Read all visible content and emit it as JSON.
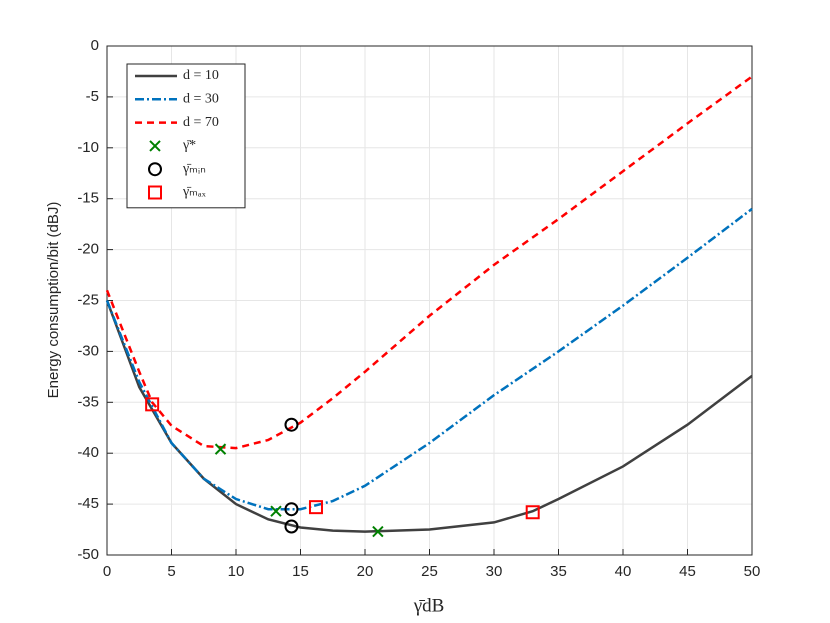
{
  "chart_data": {
    "type": "line",
    "xlabel": "γ̄dB",
    "ylabel": "Energy consumption/bit (dBJ)",
    "xlim": [
      0,
      50
    ],
    "ylim": [
      -50,
      0
    ],
    "xticks": [
      0,
      5,
      10,
      15,
      20,
      25,
      30,
      35,
      40,
      45,
      50
    ],
    "yticks": [
      0,
      -5,
      -10,
      -15,
      -20,
      -25,
      -30,
      -35,
      -40,
      -45,
      -50
    ],
    "grid": true,
    "legend": "upper left",
    "series": [
      {
        "name": "d = 10",
        "color": "#404040",
        "style": "solid",
        "x": [
          0,
          2.5,
          5,
          7.5,
          10,
          12.5,
          15,
          17.5,
          20,
          25,
          30,
          33,
          35,
          40,
          45,
          50
        ],
        "values": [
          -25,
          -33.5,
          -39,
          -42.5,
          -45,
          -46.5,
          -47.3,
          -47.6,
          -47.7,
          -47.5,
          -46.8,
          -45.7,
          -44.5,
          -41.3,
          -37.2,
          -32.4
        ]
      },
      {
        "name": "d = 30",
        "color": "#0072bd",
        "style": "dashdot",
        "x": [
          0,
          2.5,
          5,
          7.5,
          10,
          12.5,
          15,
          17.5,
          20,
          25,
          30,
          35,
          40,
          45,
          50
        ],
        "values": [
          -25,
          -33,
          -39,
          -42.5,
          -44.5,
          -45.5,
          -45.5,
          -44.7,
          -43.2,
          -39,
          -34.3,
          -30,
          -25.5,
          -20.8,
          -16
        ]
      },
      {
        "name": "d = 70",
        "color": "#ff0000",
        "style": "dashed",
        "x": [
          0,
          2.5,
          3.5,
          5,
          7.5,
          10,
          12.5,
          15,
          17.5,
          20,
          25,
          30,
          35,
          40,
          45,
          50
        ],
        "values": [
          -24,
          -32,
          -35,
          -37.3,
          -39.3,
          -39.5,
          -38.7,
          -37,
          -34.6,
          -32,
          -26.5,
          -21.5,
          -17,
          -12.3,
          -7.6,
          -3
        ]
      },
      {
        "name": "γ̄*",
        "color": "#008000",
        "marker": "x",
        "x": [
          8.8,
          13.1,
          21
        ],
        "values": [
          -39.6,
          -45.7,
          -47.7
        ]
      },
      {
        "name": "γ̄ₘᵢₙ",
        "color": "#000000",
        "marker": "o",
        "x": [
          14.3,
          14.3,
          14.3
        ],
        "values": [
          -37.2,
          -45.5,
          -47.2
        ]
      },
      {
        "name": "γ̄ₘₐₓ",
        "color": "#ff0000",
        "marker": "s",
        "x": [
          3.5,
          16.2,
          33
        ],
        "values": [
          -35.2,
          -45.3,
          -45.8
        ]
      }
    ]
  }
}
